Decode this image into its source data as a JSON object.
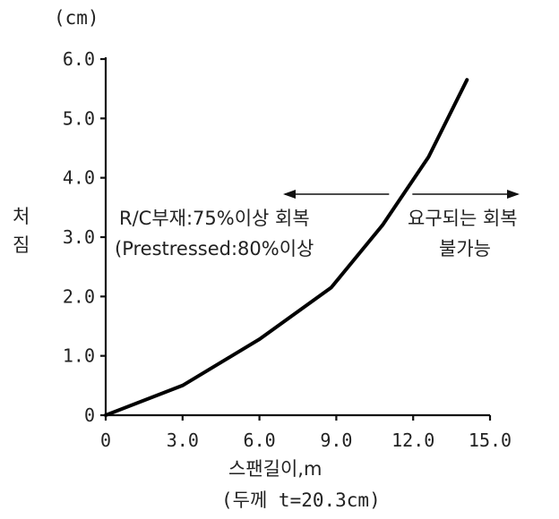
{
  "chart_data": {
    "type": "line",
    "unit_label": "(cm)",
    "ylabel_lines": [
      "처",
      "짐"
    ],
    "xlabel": "스팬길이,m",
    "xlabel_sub": "(두께 t=20.3cm)",
    "xlim": [
      0,
      15
    ],
    "ylim": [
      0,
      6
    ],
    "x_ticks": [
      {
        "value": 0,
        "label": "0"
      },
      {
        "value": 3,
        "label": "3.0"
      },
      {
        "value": 6,
        "label": "6.0"
      },
      {
        "value": 9,
        "label": "9.0"
      },
      {
        "value": 12,
        "label": "12.0"
      },
      {
        "value": 15,
        "label": "15.0"
      }
    ],
    "y_ticks": [
      {
        "value": 0,
        "label": "0"
      },
      {
        "value": 1,
        "label": "1.0"
      },
      {
        "value": 2,
        "label": "2.0"
      },
      {
        "value": 3,
        "label": "3.0"
      },
      {
        "value": 4,
        "label": "4.0"
      },
      {
        "value": 5,
        "label": "5.0"
      },
      {
        "value": 6,
        "label": "6.0"
      }
    ],
    "series": [
      {
        "x": [
          0,
          3.0,
          6.0,
          8.8,
          10.8,
          12.6,
          14.1
        ],
        "y": [
          0,
          0.5,
          1.28,
          2.15,
          3.2,
          4.35,
          5.65
        ]
      }
    ],
    "annotations": {
      "left_lines": [
        "R/C부재:75%이상 회복",
        "(Prestressed:80%이상"
      ],
      "right_lines": [
        "요구되는 회복",
        "불가능"
      ]
    },
    "divider_x": 11.2,
    "color": "#000000"
  }
}
